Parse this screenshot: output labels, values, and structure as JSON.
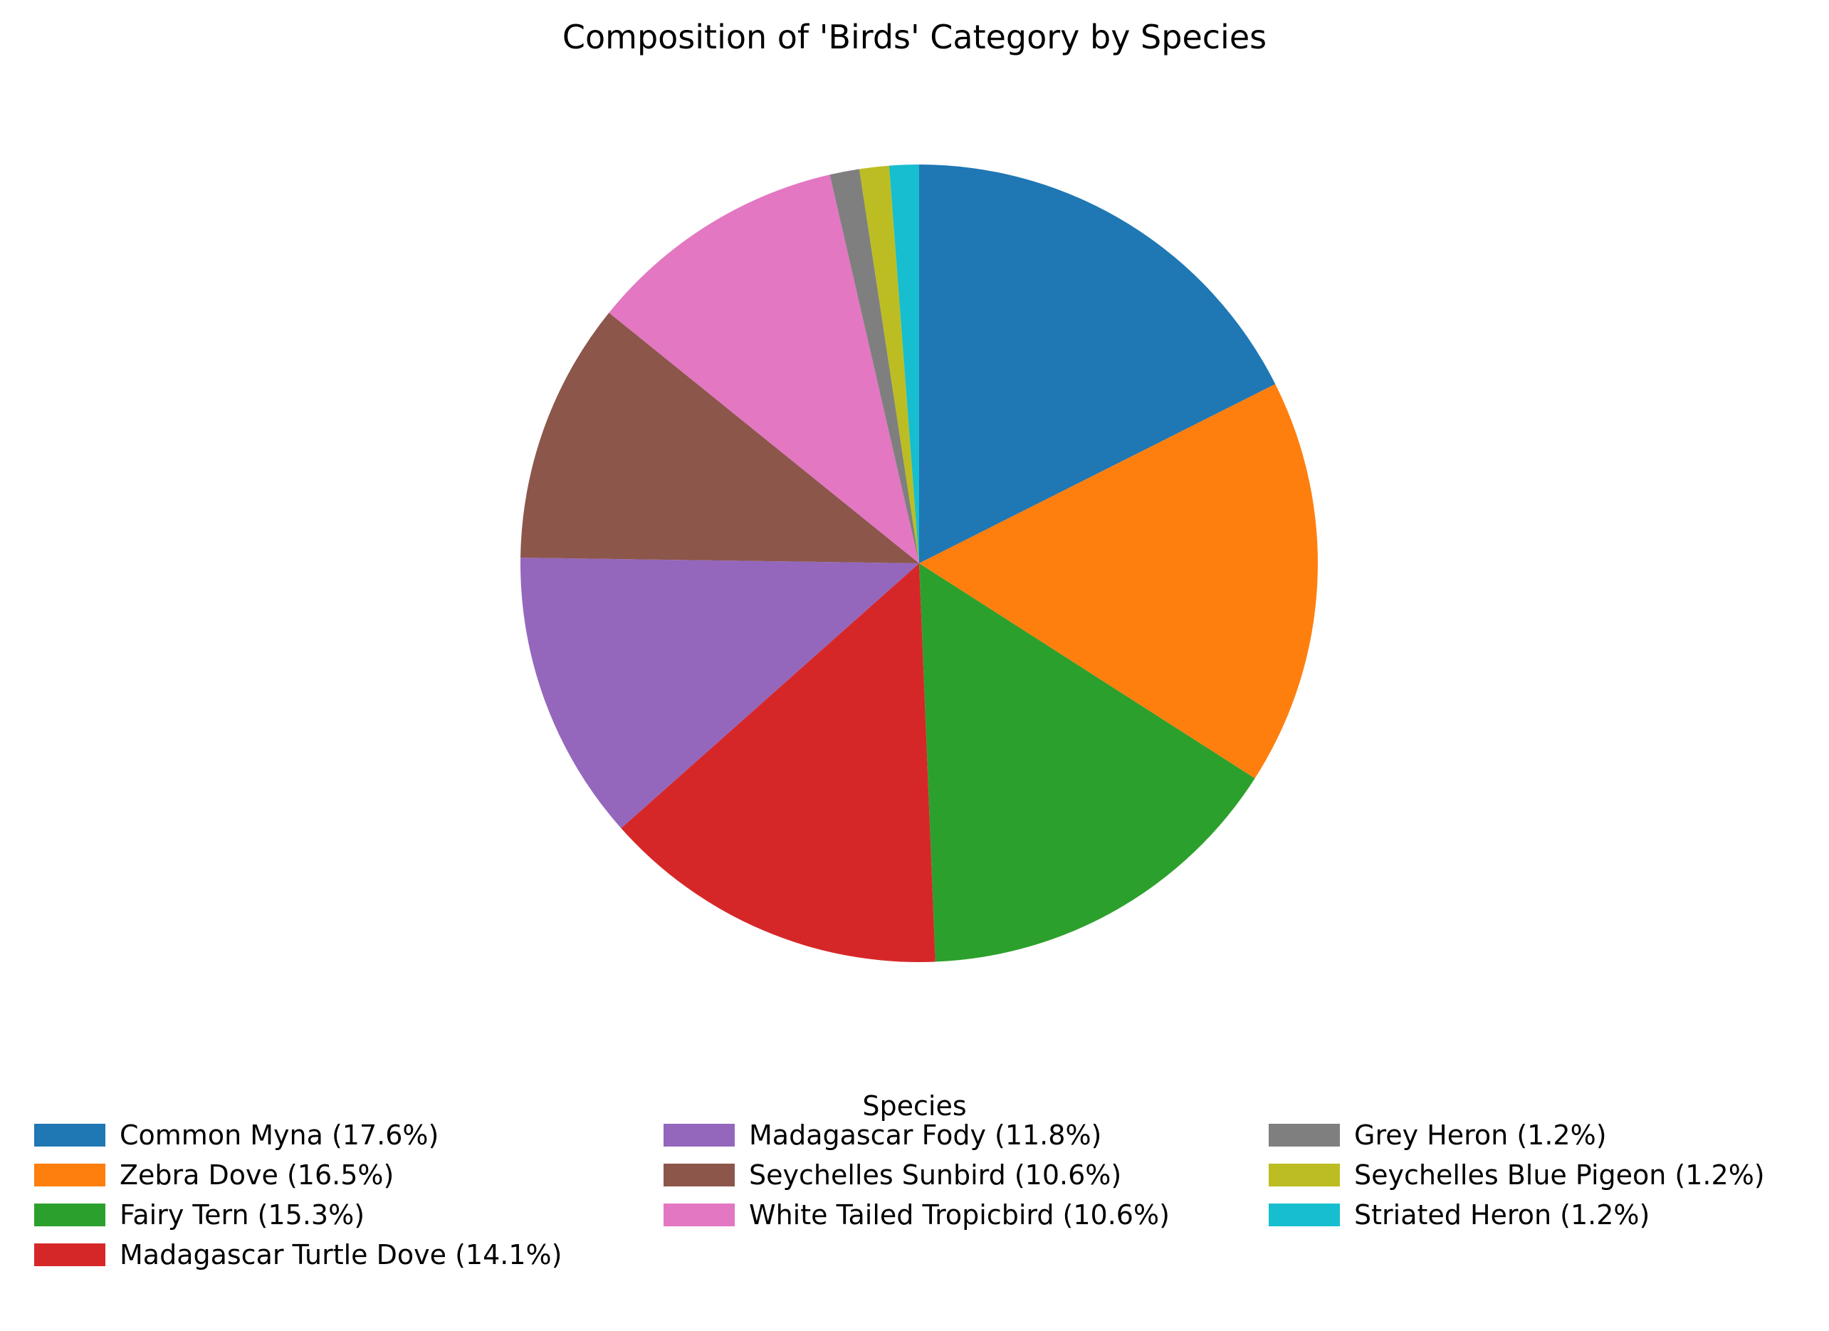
{
  "chart_data": {
    "type": "pie",
    "title": "Composition of 'Birds' Category by Species",
    "legend_title": "Species",
    "legend_placement": "bottom",
    "start_angle": 90,
    "direction": "clockwise",
    "slices": [
      {
        "name": "Common Myna",
        "value": 17.6,
        "label": "Common Myna (17.6%)",
        "color": "#1f77b4"
      },
      {
        "name": "Zebra Dove",
        "value": 16.5,
        "label": "Zebra Dove (16.5%)",
        "color": "#ff7f0e"
      },
      {
        "name": "Fairy Tern",
        "value": 15.3,
        "label": "Fairy Tern (15.3%)",
        "color": "#2ca02c"
      },
      {
        "name": "Madagascar Turtle Dove",
        "value": 14.1,
        "label": "Madagascar Turtle Dove (14.1%)",
        "color": "#d62728"
      },
      {
        "name": "Madagascar Fody",
        "value": 11.8,
        "label": "Madagascar Fody (11.8%)",
        "color": "#9467bd"
      },
      {
        "name": "Seychelles Sunbird",
        "value": 10.6,
        "label": "Seychelles Sunbird (10.6%)",
        "color": "#8c564b"
      },
      {
        "name": "White Tailed Tropicbird",
        "value": 10.6,
        "label": "White Tailed Tropicbird (10.6%)",
        "color": "#e377c2"
      },
      {
        "name": "Grey Heron",
        "value": 1.2,
        "label": "Grey Heron (1.2%)",
        "color": "#7f7f7f"
      },
      {
        "name": "Seychelles Blue Pigeon",
        "value": 1.2,
        "label": "Seychelles Blue Pigeon (1.2%)",
        "color": "#bcbd22"
      },
      {
        "name": "Striated Heron",
        "value": 1.2,
        "label": "Striated Heron (1.2%)",
        "color": "#17becf"
      }
    ]
  }
}
